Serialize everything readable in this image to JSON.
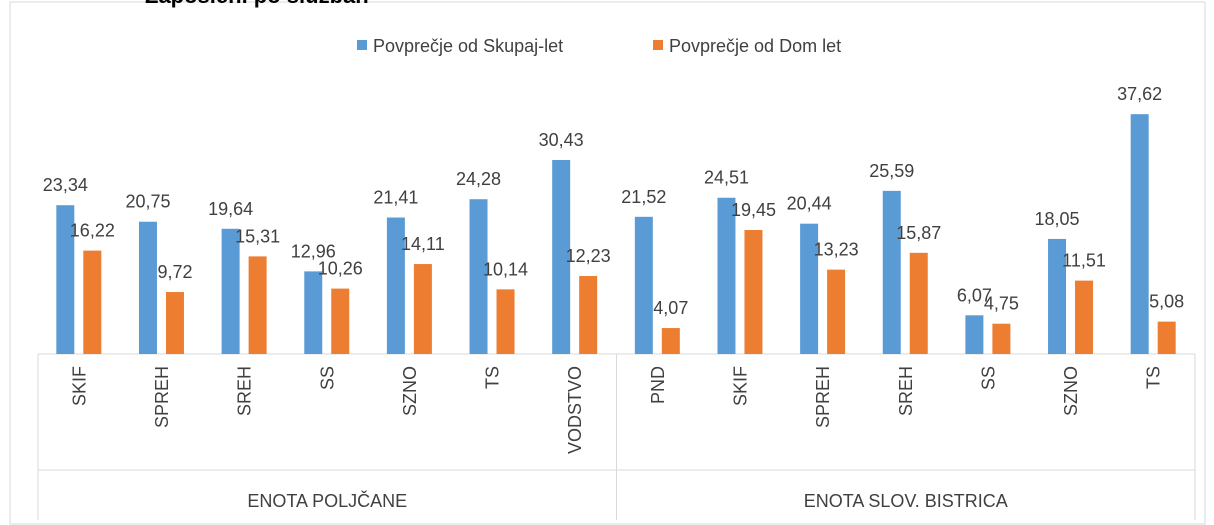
{
  "chart_data": {
    "type": "bar",
    "title": "Zaposleni po službah",
    "groups": [
      {
        "name": "ENOTA POLJČANE",
        "categories": [
          "SKIF",
          "SPREH",
          "SREH",
          "SS",
          "SZNO",
          "TS",
          "VODSTVO"
        ]
      },
      {
        "name": "ENOTA SLOV. BISTRICA",
        "categories": [
          "PND",
          "SKIF",
          "SPREH",
          "SREH",
          "SS",
          "SZNO",
          "TS"
        ]
      }
    ],
    "series": [
      {
        "name": "Povprečje od Skupaj-let",
        "color": "#5b9bd5",
        "values": [
          23.34,
          20.75,
          19.64,
          12.96,
          21.41,
          24.28,
          30.43,
          21.52,
          24.51,
          20.44,
          25.59,
          6.07,
          18.05,
          37.62
        ],
        "value_labels": [
          "23,34",
          "20,75",
          "19,64",
          "12,96",
          "21,41",
          "24,28",
          "30,43",
          "21,52",
          "24,51",
          "20,44",
          "25,59",
          "6,07",
          "18,05",
          "37,62"
        ]
      },
      {
        "name": "Povprečje od Dom let",
        "color": "#ed7d31",
        "values": [
          16.22,
          9.72,
          15.31,
          10.26,
          14.11,
          10.14,
          12.23,
          4.07,
          19.45,
          13.23,
          15.87,
          4.75,
          11.51,
          5.08
        ],
        "value_labels": [
          "16,22",
          "9,72",
          "15,31",
          "10,26",
          "14,11",
          "10,14",
          "12,23",
          "4,07",
          "19,45",
          "13,23",
          "15,87",
          "4,75",
          "11,51",
          "5,08"
        ]
      }
    ],
    "ylim": [
      0,
      40
    ],
    "legend": "top"
  }
}
